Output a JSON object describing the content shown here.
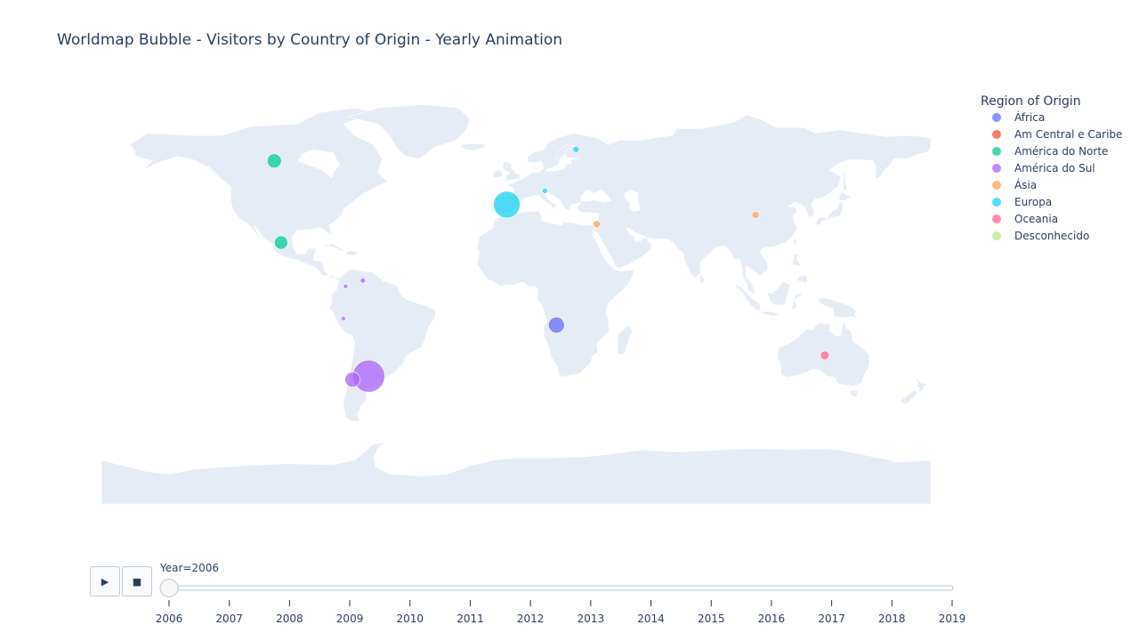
{
  "chart_data": {
    "type": "scatter",
    "subtype": "scatter-geo-bubble",
    "title": "Worldmap Bubble - Visitors by Country of Origin - Yearly Animation",
    "legend": {
      "title": "Region of Origin",
      "placement": "top-right",
      "entries": [
        {
          "name": "África",
          "color": "#636efa"
        },
        {
          "name": "Am Central e Caribe",
          "color": "#EF553B"
        },
        {
          "name": "América do Norte",
          "color": "#00cc96"
        },
        {
          "name": "América do Sul",
          "color": "#ab63fa"
        },
        {
          "name": "Ásia",
          "color": "#FFA15A"
        },
        {
          "name": "Europa",
          "color": "#19d3f3"
        },
        {
          "name": "Oceania",
          "color": "#FF6692"
        },
        {
          "name": "Desconhecido",
          "color": "#B6E880"
        }
      ]
    },
    "series": [
      {
        "name": "África",
        "points": [
          {
            "lon": 17.5,
            "lat": -12.3,
            "size": 9
          }
        ]
      },
      {
        "name": "Am Central e Caribe",
        "points": []
      },
      {
        "name": "América do Norte",
        "points": [
          {
            "lon": -105,
            "lat": 59,
            "size": 8
          },
          {
            "lon": -102,
            "lat": 23.5,
            "size": 7.5
          }
        ]
      },
      {
        "name": "América do Sul",
        "points": [
          {
            "lon": -64,
            "lat": -34.5,
            "size": 18
          },
          {
            "lon": -71,
            "lat": -36,
            "size": 8.5
          },
          {
            "lon": -66.5,
            "lat": 7,
            "size": 3
          },
          {
            "lon": -74,
            "lat": 4.5,
            "size": 2.5
          },
          {
            "lon": -75,
            "lat": -9.5,
            "size": 2.5
          },
          {
            "lon": -58,
            "lat": -23.5,
            "size": 0.6
          }
        ]
      },
      {
        "name": "Ásia",
        "points": [
          {
            "lon": 35,
            "lat": 31.5,
            "size": 4
          },
          {
            "lon": 104,
            "lat": 35.5,
            "size": 4
          }
        ]
      },
      {
        "name": "Europa",
        "points": [
          {
            "lon": -4,
            "lat": 40,
            "size": 15
          },
          {
            "lon": 26,
            "lat": 64,
            "size": 3.5
          },
          {
            "lon": 12.5,
            "lat": 46,
            "size": 3
          }
        ]
      },
      {
        "name": "Oceania",
        "points": [
          {
            "lon": 134,
            "lat": -25.5,
            "size": 5
          }
        ]
      },
      {
        "name": "Desconhecido",
        "points": []
      }
    ],
    "animation": {
      "frames": [
        2006,
        2007,
        2008,
        2009,
        2010,
        2011,
        2012,
        2013,
        2014,
        2015,
        2016,
        2017,
        2018,
        2019
      ],
      "current_label": "Year=2006",
      "current_value": 2006,
      "play_icon": "▶",
      "stop_icon": "■"
    }
  }
}
